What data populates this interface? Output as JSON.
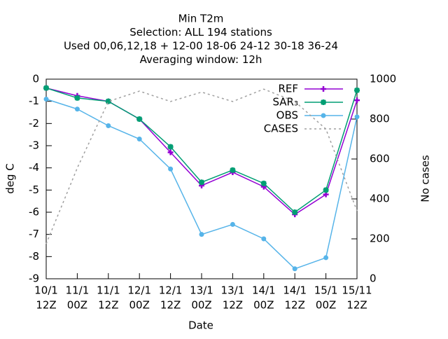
{
  "chart_data": {
    "type": "line",
    "title": [
      "Min T2m",
      "Selection: ALL     194 stations",
      "Used  00,06,12,18  + 12-00 18-06 24-12 30-18 36-24",
      "Averaging window: 12h"
    ],
    "xlabel": "Date",
    "ylabel": "deg C",
    "y2label": "No cases",
    "categories": [
      [
        "10/1",
        "12Z"
      ],
      [
        "11/1",
        "00Z"
      ],
      [
        "11/1",
        "12Z"
      ],
      [
        "12/1",
        "00Z"
      ],
      [
        "12/1",
        "12Z"
      ],
      [
        "13/1",
        "00Z"
      ],
      [
        "13/1",
        "12Z"
      ],
      [
        "14/1",
        "00Z"
      ],
      [
        "14/1",
        "12Z"
      ],
      [
        "15/1",
        "00Z"
      ],
      [
        "15/11",
        "12Z"
      ]
    ],
    "series": [
      {
        "name": "REF",
        "color": "#9400d3",
        "marker": "plus",
        "values": [
          -0.4,
          -0.75,
          -1.0,
          -1.8,
          -3.3,
          -4.8,
          -4.2,
          -4.85,
          -6.1,
          -5.2,
          -0.95
        ]
      },
      {
        "name": "SAR₃",
        "color": "#009e73",
        "marker": "star",
        "values": [
          -0.4,
          -0.85,
          -1.0,
          -1.8,
          -3.05,
          -4.65,
          -4.1,
          -4.7,
          -6.0,
          -5.0,
          -0.5
        ]
      },
      {
        "name": "OBS",
        "color": "#56b4e9",
        "marker": "circle",
        "values": [
          -0.9,
          -1.35,
          -2.1,
          -2.7,
          -4.05,
          -7.0,
          -6.55,
          -7.2,
          -8.55,
          -8.05,
          -1.7
        ]
      },
      {
        "name": "CASES",
        "color": "#a0a0a0",
        "dashed": true,
        "axis": "y2",
        "values": [
          175,
          555,
          888,
          940,
          888,
          935,
          888,
          950,
          888,
          750,
          340
        ]
      }
    ],
    "ylim": [
      -9,
      0
    ],
    "yticks": [
      0,
      -1,
      -2,
      -3,
      -4,
      -5,
      -6,
      -7,
      -8,
      -9
    ],
    "y2lim": [
      0,
      1000
    ],
    "y2ticks": [
      0,
      200,
      400,
      600,
      800,
      1000
    ],
    "legend": "top-right"
  }
}
